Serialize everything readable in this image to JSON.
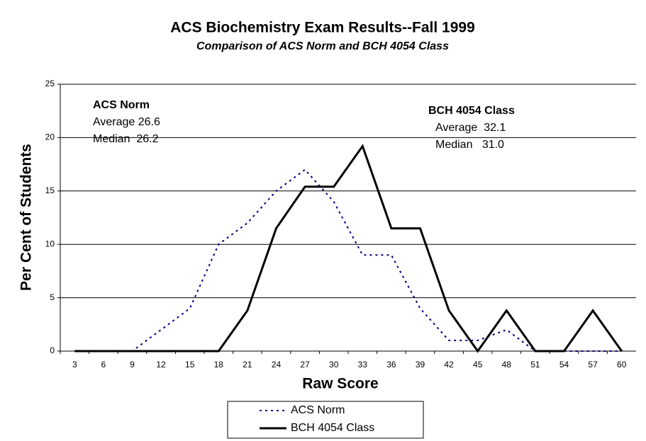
{
  "chart_data": {
    "type": "line",
    "title": "ACS Biochemistry Exam Results--Fall 1999",
    "subtitle": "Comparison of ACS Norm and BCH 4054 Class",
    "x_label": "Raw Score",
    "y_label": "Per Cent of Students",
    "categories": [
      "3",
      "6",
      "9",
      "12",
      "15",
      "18",
      "21",
      "24",
      "27",
      "30",
      "33",
      "36",
      "39",
      "42",
      "45",
      "48",
      "51",
      "54",
      "57",
      "60"
    ],
    "series": [
      {
        "name": "ACS Norm",
        "color": "#000080",
        "dashed": true,
        "values": [
          0,
          0,
          0,
          2,
          4,
          10,
          12,
          15,
          17,
          14,
          9,
          9,
          4,
          1,
          1,
          2,
          0,
          0,
          0,
          0
        ]
      },
      {
        "name": "BCH 4054 Class",
        "color": "#000000",
        "dashed": false,
        "values": [
          0,
          0,
          0,
          0,
          0,
          0,
          3.8,
          11.5,
          15.4,
          15.4,
          19.2,
          11.5,
          11.5,
          3.8,
          0,
          3.8,
          0,
          0,
          3.8,
          0
        ]
      }
    ],
    "ylim": [
      0,
      25
    ],
    "yticks": [
      0,
      5,
      10,
      15,
      20,
      25
    ],
    "grid": true,
    "legend": "bottom",
    "annotations": [
      {
        "title": "ACS Norm",
        "lines": [
          "Average 26.6",
          "Median  26.2"
        ]
      },
      {
        "title": "BCH 4054 Class",
        "lines": [
          "Average  32.1",
          "Median   31.0"
        ]
      }
    ]
  }
}
